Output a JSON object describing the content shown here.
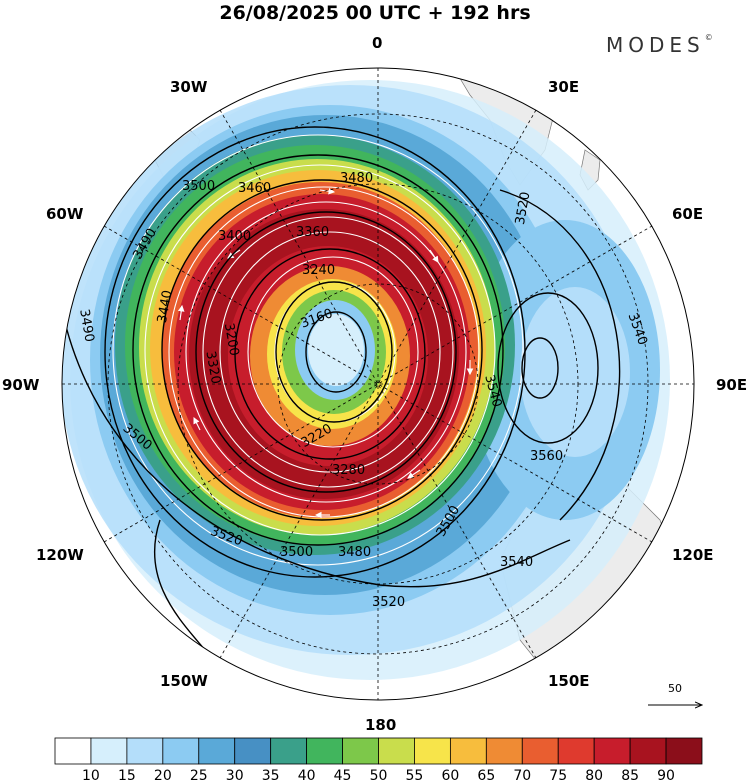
{
  "header": {
    "title": "26/08/2025  00 UTC  + 192 hrs",
    "brand": "MODES",
    "brand_mark": "©"
  },
  "map": {
    "projection": "south-polar-stereographic",
    "longitude_labels": {
      "top": "0",
      "top_right": "30E",
      "upper_right": "60E",
      "right": "90E",
      "lower_right": "120E",
      "bottom_right": "150E",
      "bottom": "180",
      "bottom_left": "150W",
      "lower_left": "120W",
      "left": "90W",
      "upper_left": "60W",
      "top_left": "30W"
    },
    "contour_labels": [
      "3160",
      "3200",
      "3220",
      "3240",
      "3280",
      "3320",
      "3360",
      "3400",
      "3440",
      "3460",
      "3480",
      "3490",
      "3500",
      "3520",
      "3540",
      "3560"
    ],
    "reference_vector": "50",
    "colors": {
      "low": "#bfe3f7",
      "mid": "#5aa9d8",
      "green": "#41ab5d",
      "yellow": "#f7e44a",
      "orange": "#ef8b34",
      "red": "#c7162b",
      "dark": "#8b0e1a"
    }
  },
  "colorbar": {
    "levels": [
      "10",
      "15",
      "20",
      "25",
      "30",
      "35",
      "40",
      "45",
      "50",
      "55",
      "60",
      "65",
      "70",
      "75",
      "80",
      "85",
      "90"
    ],
    "colors": [
      "#ffffff",
      "#d6effc",
      "#b4defa",
      "#8ccbf2",
      "#5aa9d8",
      "#4790c4",
      "#3aa08a",
      "#41b55d",
      "#7dc84a",
      "#c9dd4c",
      "#f7e44a",
      "#f7bd3d",
      "#ef8b34",
      "#e95e30",
      "#df3a2e",
      "#c71d2c",
      "#a8131f",
      "#8b0e1a"
    ]
  }
}
